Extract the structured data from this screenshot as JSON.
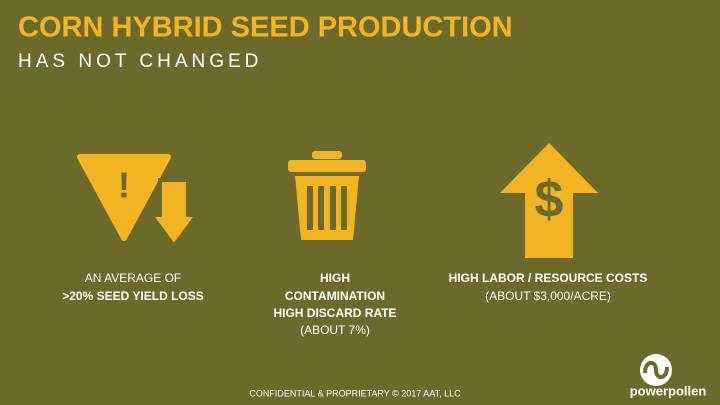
{
  "header": {
    "title": "CORN HYBRID SEED PRODUCTION",
    "subtitle": "HAS NOT CHANGED"
  },
  "items": [
    {
      "icon_symbol": "!",
      "lines": [
        "AN AVERAGE OF",
        ">20%  SEED YIELD LOSS"
      ]
    },
    {
      "lines": [
        "HIGH",
        "CONTAMINATION",
        "HIGH DISCARD RATE",
        "(ABOUT 7%)"
      ]
    },
    {
      "icon_symbol": "$",
      "lines": [
        "HIGH LABOR / RESOURCE COSTS",
        "(ABOUT $3,000/ACRE)"
      ]
    }
  ],
  "footer": "CONFIDENTIAL & PROPRIETARY © 2017 AAT, LLC",
  "logo": "powerpollen"
}
